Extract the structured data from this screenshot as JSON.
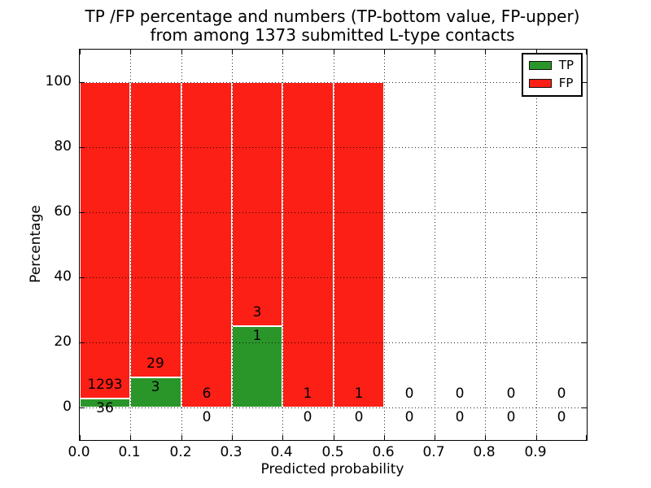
{
  "title": {
    "line1": "TP /FP percentage and numbers (TP-bottom value, FP-upper)",
    "line2": "from among 1373 submitted L-type contacts"
  },
  "axes": {
    "xlabel": "Predicted probability",
    "ylabel": "Percentage"
  },
  "legend": {
    "items": [
      {
        "label": "TP",
        "color": "#2a962a"
      },
      {
        "label": "FP",
        "color": "#fb1f15"
      }
    ]
  },
  "chart_data": {
    "type": "bar",
    "stacked": true,
    "normalized_to_percent": true,
    "title": "TP /FP percentage and numbers (TP-bottom value, FP-upper) from among 1373 submitted L-type contacts",
    "xlabel": "Predicted probability",
    "ylabel": "Percentage",
    "total_submitted": 1373,
    "bin_width": 0.1,
    "categories": [
      "0.0-0.1",
      "0.1-0.2",
      "0.2-0.3",
      "0.3-0.4",
      "0.4-0.5",
      "0.5-0.6",
      "0.6-0.7",
      "0.7-0.8",
      "0.8-0.9",
      "0.9-1.0"
    ],
    "series": [
      {
        "name": "TP",
        "color": "#2a962a",
        "counts": [
          36,
          3,
          0,
          1,
          0,
          0,
          0,
          0,
          0,
          0
        ],
        "pct_of_bin": [
          2.71,
          9.38,
          0.0,
          25.0,
          0.0,
          0.0,
          0,
          0,
          0,
          0
        ]
      },
      {
        "name": "FP",
        "color": "#fb1f15",
        "counts": [
          1293,
          29,
          6,
          3,
          1,
          1,
          0,
          0,
          0,
          0
        ],
        "pct_of_bin": [
          97.29,
          90.63,
          100.0,
          75.0,
          100.0,
          100.0,
          0,
          0,
          0,
          0
        ]
      }
    ],
    "x_tick_labels": [
      "0.0",
      "0.1",
      "0.2",
      "0.3",
      "0.4",
      "0.5",
      "0.6",
      "0.7",
      "0.8",
      "0.9"
    ],
    "y_tick_labels": [
      "0",
      "20",
      "40",
      "60",
      "80",
      "100"
    ],
    "y_tick_values": [
      0,
      20,
      40,
      60,
      80,
      100
    ],
    "xlim": [
      0.0,
      1.0
    ],
    "ylim": [
      -10,
      110
    ],
    "grid": "dotted",
    "grid_on_top": true,
    "bar_edge_color": "#ffffff",
    "legend_position": "upper right"
  }
}
